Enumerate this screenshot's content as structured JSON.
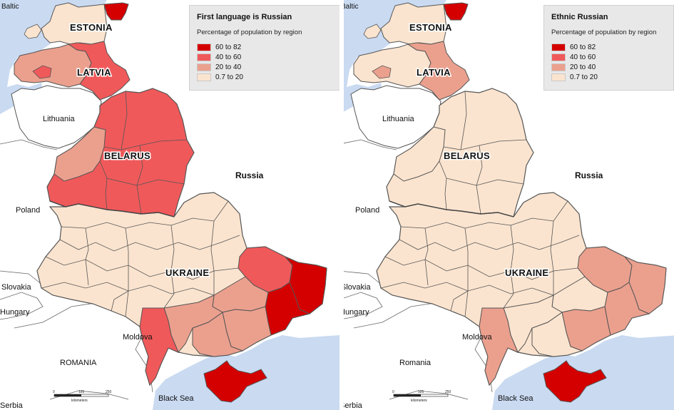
{
  "colors": {
    "sea": "#c9daf1",
    "land_outside": "#ffffff",
    "border": "#555555",
    "c60_82": "#d40000",
    "c40_60": "#f0595a",
    "c20_40": "#eba08e",
    "c07_20": "#fbe4cf"
  },
  "maps": [
    {
      "legend": {
        "title": "First language is Russian",
        "subtitle": "Percentage of population by region",
        "classes": [
          {
            "label": "60    to 82",
            "color": "#d40000"
          },
          {
            "label": "40    to 60",
            "color": "#f0595a"
          },
          {
            "label": "20    to 40",
            "color": "#eba08e"
          },
          {
            "label": "0.7 to 20",
            "color": "#fbe4cf"
          }
        ]
      },
      "region_levels": {
        "estonia": "c07_20",
        "estonia_east": "c60_82",
        "latvia": "c20_40",
        "latvia_east": "c40_60",
        "belarus": "c40_60",
        "belarus_west": "c20_40",
        "ukraine": "c07_20",
        "kharkiv": "c40_60",
        "luhansk": "c60_82",
        "donetsk": "c60_82",
        "zaporizhzhia": "c20_40",
        "dnipro": "c20_40",
        "odesa": "c40_60",
        "mykolaiv": "c20_40",
        "kherson": "c20_40",
        "crimea": "c60_82"
      },
      "labels": {
        "baltic": "Baltic",
        "estonia": "ESTONIA",
        "latvia": "LATVIA",
        "lithuania": "Lithuania",
        "belarus": "BELARUS",
        "russia": "Russia",
        "poland": "Poland",
        "ukraine": "UKRAINE",
        "slovakia": "Slovakia",
        "hungary": "Hungary",
        "moldova": "Moldova",
        "romania": "ROMANIA",
        "black_sea": "Black Sea",
        "serbia": "Serbia"
      },
      "scalebar": {
        "ticks": [
          "0",
          "125",
          "250"
        ],
        "unit": "kilometers"
      }
    },
    {
      "legend": {
        "title": "Ethnic Russian",
        "subtitle": "Percentage of population by region",
        "classes": [
          {
            "label": "60    to 82",
            "color": "#d40000"
          },
          {
            "label": "40    to 60",
            "color": "#f0595a"
          },
          {
            "label": "20    to 40",
            "color": "#eba08e"
          },
          {
            "label": "0.7 to 20",
            "color": "#fbe4cf"
          }
        ]
      },
      "region_levels": {
        "estonia": "c07_20",
        "estonia_east": "c60_82",
        "latvia": "c07_20",
        "latvia_east": "c20_40",
        "belarus": "c07_20",
        "belarus_west": "c07_20",
        "ukraine": "c07_20",
        "kharkiv": "c20_40",
        "luhansk": "c20_40",
        "donetsk": "c20_40",
        "zaporizhzhia": "c20_40",
        "dnipro": "c07_20",
        "odesa": "c20_40",
        "mykolaiv": "c07_20",
        "kherson": "c07_20",
        "crimea": "c60_82"
      },
      "labels": {
        "baltic": "Baltic",
        "estonia": "ESTONIA",
        "latvia": "LATVIA",
        "lithuania": "Lithuania",
        "belarus": "BELARUS",
        "russia": "Russia",
        "poland": "Poland",
        "ukraine": "UKRAINE",
        "slovakia": "Slovakia",
        "hungary": "Hungary",
        "moldova": "Moldova",
        "romania": "Romania",
        "black_sea": "Black Sea",
        "serbia": "Serbia"
      },
      "scalebar": {
        "ticks": [
          "0",
          "125",
          "250"
        ],
        "unit": "kilometers"
      }
    }
  ]
}
